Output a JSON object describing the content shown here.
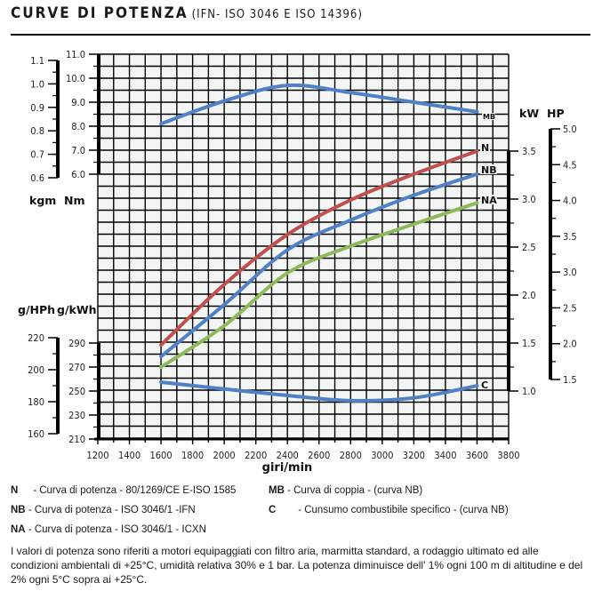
{
  "header": {
    "title": "CURVE DI POTENZA",
    "subtitle": "(IFN- ISO 3046 E ISO 14396)"
  },
  "chart_data": {
    "type": "line",
    "title": "CURVE DI POTENZA",
    "subtitle": "(IFN- ISO 3046 E ISO 14396)",
    "xlabel": "giri/min",
    "xlim": [
      1200,
      3800
    ],
    "xticks": [
      1200,
      1400,
      1600,
      1800,
      2000,
      2200,
      2400,
      2600,
      2800,
      3000,
      3200,
      3400,
      3600,
      3800
    ],
    "grid": true,
    "axes": {
      "torque_kgm": {
        "label": "kgm",
        "range": [
          0.6,
          1.1
        ],
        "ticks": [
          "1.1",
          "1.0",
          "0.9",
          "0.8",
          "0.7",
          "0.6"
        ]
      },
      "torque_nm": {
        "label": "Nm",
        "range": [
          6.0,
          11.0
        ],
        "ticks": [
          "11.0",
          "10.0",
          "9.0",
          "8.0",
          "7.0",
          "6.0"
        ]
      },
      "consumption_ghph": {
        "label": "g/HPh",
        "range": [
          160,
          220
        ],
        "ticks": [
          "220",
          "200",
          "180",
          "160"
        ]
      },
      "consumption_gkwh": {
        "label": "g/kWh",
        "range": [
          210,
          290
        ],
        "ticks": [
          "290",
          "270",
          "250",
          "230",
          "210"
        ]
      },
      "power_kw": {
        "label": "kW",
        "range": [
          1.0,
          3.5
        ],
        "ticks": [
          "3.5",
          "3.0",
          "2.5",
          "2.0",
          "1.5",
          "1.0"
        ]
      },
      "power_hp": {
        "label": "HP",
        "range": [
          1.5,
          5.0
        ],
        "ticks": [
          "5.0",
          "4.5",
          "4.0",
          "3.5",
          "3.0",
          "2.5",
          "2.0",
          "1.5"
        ]
      }
    },
    "x": [
      1600,
      2000,
      2400,
      2800,
      3200,
      3600
    ],
    "series": [
      {
        "name": "MB",
        "axis": "torque_nm",
        "color": "#4f81c7",
        "values": [
          8.1,
          9.05,
          9.7,
          9.4,
          9.0,
          8.6
        ]
      },
      {
        "name": "N",
        "axis": "power_kw",
        "color": "#c0504d",
        "values": [
          1.48,
          2.11,
          2.63,
          2.99,
          3.26,
          3.5
        ]
      },
      {
        "name": "NB",
        "axis": "power_kw",
        "color": "#4f81c7",
        "values": [
          1.36,
          1.9,
          2.47,
          2.78,
          3.04,
          3.26
        ]
      },
      {
        "name": "NA",
        "axis": "power_kw",
        "color": "#8db95a",
        "values": [
          1.25,
          1.68,
          2.23,
          2.51,
          2.74,
          2.96
        ]
      },
      {
        "name": "C",
        "axis": "consumption_gkwh",
        "color": "#4f81c7",
        "values": [
          257.4,
          251.7,
          246.3,
          242,
          244.3,
          254.4
        ]
      }
    ]
  },
  "legend": [
    {
      "key": "N",
      "text": "- Curva di potenza - 80/1269/CE E-ISO 1585"
    },
    {
      "key": "MB",
      "text": "- Curva di coppia - (curva NB)"
    },
    {
      "key": "NB",
      "text": "- Curva di potenza - ISO 3046/1 -IFN"
    },
    {
      "key": "C",
      "text": "- Cunsumo combustibile specifico - (curva NB)"
    },
    {
      "key": "NA",
      "text": "- Curva di potenza - ISO 3046/1 - ICXN"
    }
  ],
  "note": "I valori di potenza sono riferiti a motori equipaggiati con filtro aria, marmitta standard, a rodaggio ultimato ed alle condizioni ambientali di +25°C, umidità relativa 30% e 1 bar. La potenza diminuisce dell' 1% ogni 100 m di altitudine e del 2% ogni 5°C sopra ai +25°C."
}
